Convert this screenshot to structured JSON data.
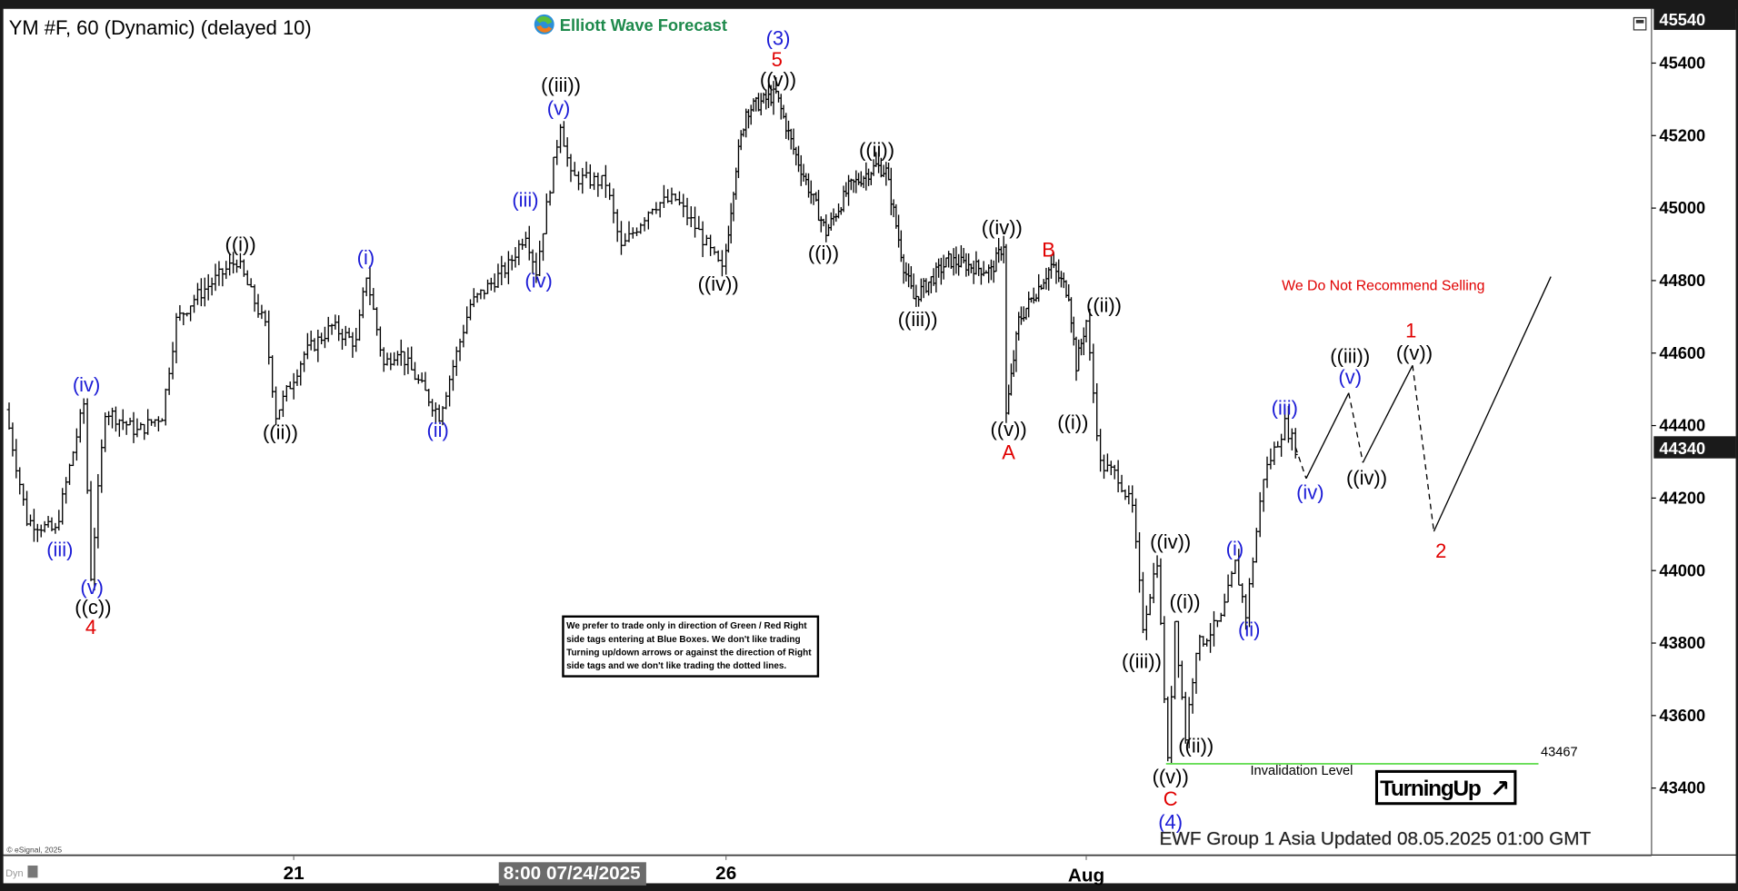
{
  "header": {
    "symbol_title": "YM #F, 60 (Dynamic) (delayed 10)",
    "brand": "Elliott Wave Forecast"
  },
  "footer": {
    "copyright": "© eSignal, 2025",
    "dyn_label": "Dyn",
    "updated": "EWF Group 1 Asia Updated 08.05.2025 01:00 GMT"
  },
  "notes": {
    "disclaimer": [
      "We prefer to trade only in direction of Green / Red Right",
      "side tags entering at Blue Boxes. We don't like trading",
      "Turning up/down arrows or against the direction of Right",
      "side tags and we don't like trading the dotted lines."
    ],
    "recommendation": "We Do Not Recommend Selling",
    "invalidation_label": "Invalidation Level",
    "invalidation_value": "43467",
    "turning_badge": "TurningUp",
    "turning_arrow": "↗"
  },
  "colors": {
    "wave_blue": "#1c1cd6",
    "wave_black": "#000000",
    "wave_red": "#e00000",
    "invalidation_green": "#66dd55",
    "brand_green": "#1e8a4c"
  },
  "chart_data": {
    "type": "ohlc-bar",
    "interval": "60",
    "y_ticks": [
      "45400",
      "45200",
      "45000",
      "44800",
      "44600",
      "44400",
      "44200",
      "44000",
      "43800",
      "43600",
      "43400"
    ],
    "y_top_label": "45540",
    "last_price": "44340",
    "ylim": [
      43200,
      45560
    ],
    "x_ticks": [
      "21",
      "8:00 07/24/2025",
      "26",
      "Aug"
    ],
    "x_cursor_label": "8:00 07/24/2025",
    "invalidation_level": 43467,
    "price_path": [
      {
        "t": "2025-07-17 15:00",
        "p": 44444
      },
      {
        "t": "2025-07-17 18:00",
        "p": 44292
      },
      {
        "t": "2025-07-17 21:00",
        "p": 44139
      },
      {
        "t": "2025-07-18 05:00",
        "p": 44108
      },
      {
        "t": "2025-07-18 13:00",
        "p": 44460
      },
      {
        "t": "2025-07-18 15:00",
        "p": 43986
      },
      {
        "t": "2025-07-18 19:00",
        "p": 44444
      },
      {
        "t": "2025-07-19 04:00",
        "p": 44383
      },
      {
        "t": "2025-07-19 11:00",
        "p": 44429
      },
      {
        "t": "2025-07-19 15:00",
        "p": 44689
      },
      {
        "t": "2025-07-19 20:00",
        "p": 44750
      },
      {
        "t": "2025-07-20 08:00",
        "p": 44856
      },
      {
        "t": "2025-07-20 16:00",
        "p": 44673
      },
      {
        "t": "2025-07-20 19:00",
        "p": 44429
      },
      {
        "t": "2025-07-21 03:00",
        "p": 44597
      },
      {
        "t": "2025-07-21 11:00",
        "p": 44673
      },
      {
        "t": "2025-07-21 18:00",
        "p": 44627
      },
      {
        "t": "2025-07-21 21:00",
        "p": 44817
      },
      {
        "t": "2025-07-22 02:00",
        "p": 44566
      },
      {
        "t": "2025-07-22 06:00",
        "p": 44612
      },
      {
        "t": "2025-07-22 18:00",
        "p": 44429
      },
      {
        "t": "2025-07-23 03:00",
        "p": 44734
      },
      {
        "t": "2025-07-23 14:00",
        "p": 44841
      },
      {
        "t": "2025-07-23 19:00",
        "p": 44933
      },
      {
        "t": "2025-07-23 22:00",
        "p": 44826
      },
      {
        "t": "2025-07-24 05:00",
        "p": 45238
      },
      {
        "t": "2025-07-24 08:00",
        "p": 45085
      },
      {
        "t": "2025-07-24 17:00",
        "p": 45070
      },
      {
        "t": "2025-07-24 21:00",
        "p": 44887
      },
      {
        "t": "2025-07-25 05:00",
        "p": 45009
      },
      {
        "t": "2025-07-25 11:00",
        "p": 45024
      },
      {
        "t": "2025-07-25 17:00",
        "p": 44933
      },
      {
        "t": "2025-07-25 23:00",
        "p": 44826
      },
      {
        "t": "2025-07-26 04:00",
        "p": 45116
      },
      {
        "t": "2025-07-26 08:00",
        "p": 45269
      },
      {
        "t": "2025-07-26 20:00",
        "p": 45315
      },
      {
        "t": "2025-07-27 03:00",
        "p": 45162
      },
      {
        "t": "2025-07-27 16:00",
        "p": 44933
      },
      {
        "t": "2025-07-28 01:00",
        "p": 45055
      },
      {
        "t": "2025-07-28 12:00",
        "p": 45116
      },
      {
        "t": "2025-07-28 16:00",
        "p": 45101
      },
      {
        "t": "2025-07-28 23:00",
        "p": 44841
      },
      {
        "t": "2025-07-29 03:00",
        "p": 44750
      },
      {
        "t": "2025-07-29 17:00",
        "p": 44856
      },
      {
        "t": "2025-07-30 10:00",
        "p": 44826
      },
      {
        "t": "2025-07-30 15:00",
        "p": 44902
      },
      {
        "t": "2025-07-30 16:00",
        "p": 44429
      },
      {
        "t": "2025-07-30 21:00",
        "p": 44689
      },
      {
        "t": "2025-07-31 10:00",
        "p": 44841
      },
      {
        "t": "2025-07-31 17:00",
        "p": 44765
      },
      {
        "t": "2025-07-31 20:00",
        "p": 44566
      },
      {
        "t": "2025-08-01 00:00",
        "p": 44689
      },
      {
        "t": "2025-08-01 04:00",
        "p": 44292
      },
      {
        "t": "2025-08-01 09:00",
        "p": 44261
      },
      {
        "t": "2025-08-01 13:00",
        "p": 44170
      },
      {
        "t": "2025-08-01 16:00",
        "p": 43849
      },
      {
        "t": "2025-08-01 20:00",
        "p": 44032
      },
      {
        "t": "2025-08-01 23:00",
        "p": 43467
      },
      {
        "t": "2025-08-02 01:00",
        "p": 43864
      },
      {
        "t": "2025-08-02 04:00",
        "p": 43543
      },
      {
        "t": "2025-08-02 07:00",
        "p": 43788
      },
      {
        "t": "2025-08-02 14:00",
        "p": 43864
      },
      {
        "t": "2025-08-02 18:00",
        "p": 44017
      },
      {
        "t": "2025-08-02 21:00",
        "p": 43879
      },
      {
        "t": "2025-08-03 02:00",
        "p": 44261
      },
      {
        "t": "2025-08-03 08:00",
        "p": 44405
      },
      {
        "t": "2025-08-03 11:00",
        "p": 44340
      }
    ],
    "projection": [
      {
        "t": "2025-08-03 11:00",
        "p": 44340,
        "style": "dashed"
      },
      {
        "t": "2025-08-03 14:00",
        "p": 44254,
        "style": "solid"
      },
      {
        "t": "2025-08-04 02:00",
        "p": 44490,
        "style": "dashed"
      },
      {
        "t": "2025-08-04 06:00",
        "p": 44298,
        "style": "solid"
      },
      {
        "t": "2025-08-04 20:00",
        "p": 44566,
        "style": "dashed"
      },
      {
        "t": "2025-08-05 02:00",
        "p": 44108,
        "style": "solid"
      },
      {
        "t": "2025-08-06 11:00",
        "p": 44811,
        "style": "end"
      }
    ],
    "wave_labels": [
      {
        "text": "(iv)",
        "color": "blue"
      },
      {
        "text": "(iii)",
        "color": "blue"
      },
      {
        "text": "(v)",
        "color": "blue"
      },
      {
        "text": "((c))",
        "color": "black"
      },
      {
        "text": "4",
        "color": "red"
      },
      {
        "text": "((i))",
        "color": "black"
      },
      {
        "text": "((ii))",
        "color": "black"
      },
      {
        "text": "(i)",
        "color": "blue"
      },
      {
        "text": "(ii)",
        "color": "blue"
      },
      {
        "text": "(iii)",
        "color": "blue"
      },
      {
        "text": "(iv)",
        "color": "blue"
      },
      {
        "text": "((iii))",
        "color": "black"
      },
      {
        "text": "(v)",
        "color": "blue"
      },
      {
        "text": "((iv))",
        "color": "black"
      },
      {
        "text": "(3)",
        "color": "blue"
      },
      {
        "text": "5",
        "color": "red"
      },
      {
        "text": "((v))",
        "color": "black"
      },
      {
        "text": "((i))",
        "color": "black"
      },
      {
        "text": "((ii))",
        "color": "black"
      },
      {
        "text": "((iii))",
        "color": "black"
      },
      {
        "text": "((iv))",
        "color": "black"
      },
      {
        "text": "((v))",
        "color": "black"
      },
      {
        "text": "A",
        "color": "red"
      },
      {
        "text": "B",
        "color": "red"
      },
      {
        "text": "((ii))",
        "color": "black"
      },
      {
        "text": "((i))",
        "color": "black"
      },
      {
        "text": "((iv))",
        "color": "black"
      },
      {
        "text": "((i))",
        "color": "black"
      },
      {
        "text": "((iii))",
        "color": "black"
      },
      {
        "text": "((ii))",
        "color": "black"
      },
      {
        "text": "((v))",
        "color": "black"
      },
      {
        "text": "C",
        "color": "red"
      },
      {
        "text": "(4)",
        "color": "blue"
      },
      {
        "text": "(i)",
        "color": "blue"
      },
      {
        "text": "(ii)",
        "color": "blue"
      },
      {
        "text": "(iii)",
        "color": "blue"
      },
      {
        "text": "(iv)",
        "color": "blue"
      },
      {
        "text": "((iii))",
        "color": "black"
      },
      {
        "text": "(v)",
        "color": "blue"
      },
      {
        "text": "((iv))",
        "color": "black"
      },
      {
        "text": "1",
        "color": "red"
      },
      {
        "text": "((v))",
        "color": "black"
      },
      {
        "text": "2",
        "color": "red"
      }
    ]
  }
}
